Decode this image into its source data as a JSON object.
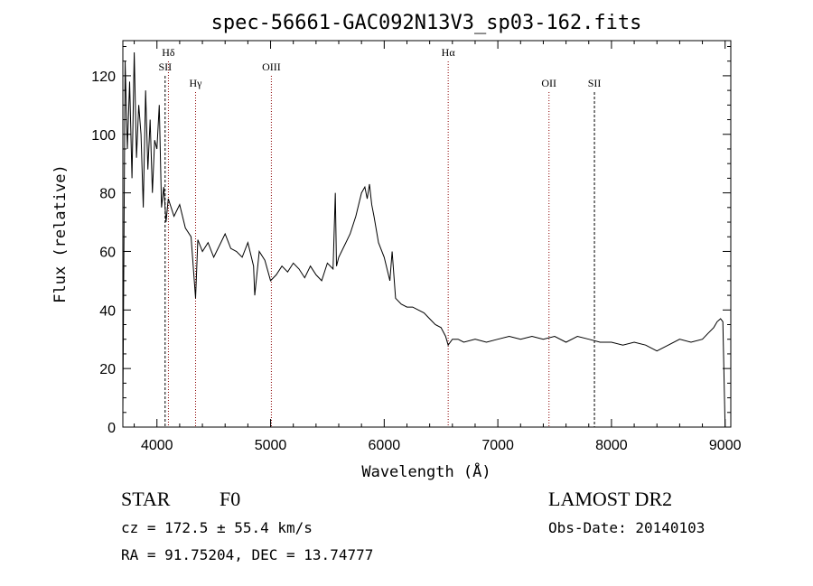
{
  "chart_data": {
    "type": "line",
    "title": "spec-56661-GAC092N13V3_sp03-162.fits",
    "xlabel": "Wavelength (Å)",
    "ylabel": "Flux (relative)",
    "xlim": [
      3700,
      9050
    ],
    "ylim": [
      0,
      132
    ],
    "xticks": [
      4000,
      5000,
      6000,
      7000,
      8000,
      9000
    ],
    "yticks": [
      0,
      20,
      40,
      60,
      80,
      100,
      120
    ],
    "grid": false,
    "series": [
      {
        "color": "#000000",
        "x": [
          3700,
          3720,
          3740,
          3760,
          3780,
          3800,
          3820,
          3840,
          3860,
          3880,
          3900,
          3920,
          3940,
          3960,
          3980,
          4000,
          4020,
          4040,
          4060,
          4080,
          4100,
          4150,
          4200,
          4250,
          4300,
          4340,
          4360,
          4400,
          4450,
          4500,
          4550,
          4600,
          4650,
          4700,
          4750,
          4800,
          4850,
          4861,
          4900,
          4950,
          5000,
          5050,
          5100,
          5150,
          5200,
          5250,
          5300,
          5350,
          5400,
          5450,
          5500,
          5550,
          5570,
          5580,
          5600,
          5650,
          5700,
          5750,
          5800,
          5830,
          5850,
          5870,
          5890,
          5910,
          5950,
          6000,
          6050,
          6070,
          6100,
          6150,
          6200,
          6250,
          6300,
          6350,
          6400,
          6450,
          6500,
          6540,
          6563,
          6600,
          6650,
          6700,
          6800,
          6900,
          7000,
          7100,
          7200,
          7300,
          7400,
          7500,
          7600,
          7700,
          7800,
          7900,
          8000,
          8100,
          8200,
          8300,
          8400,
          8500,
          8600,
          8700,
          8800,
          8850,
          8900,
          8930,
          8960,
          8980,
          9000
        ],
        "y": [
          5,
          125,
          95,
          118,
          85,
          128,
          92,
          110,
          100,
          75,
          115,
          88,
          105,
          80,
          98,
          95,
          110,
          75,
          82,
          70,
          78,
          72,
          76,
          68,
          65,
          44,
          64,
          60,
          63,
          58,
          62,
          66,
          61,
          60,
          58,
          63,
          55,
          45,
          60,
          57,
          50,
          52,
          55,
          53,
          56,
          54,
          51,
          55,
          52,
          50,
          56,
          54,
          80,
          55,
          58,
          62,
          66,
          72,
          80,
          82,
          78,
          83,
          76,
          72,
          63,
          58,
          50,
          60,
          44,
          42,
          41,
          41,
          40,
          39,
          37,
          35,
          34,
          31,
          28,
          30,
          30,
          29,
          30,
          29,
          30,
          31,
          30,
          31,
          30,
          31,
          29,
          31,
          30,
          29,
          29,
          28,
          29,
          28,
          26,
          28,
          30,
          29,
          30,
          32,
          34,
          36,
          37,
          36,
          0
        ]
      }
    ],
    "lines": [
      {
        "x": 4101,
        "label": "Hδ",
        "color": "#8b0000",
        "style": "dotted",
        "label_row": "top"
      },
      {
        "x": 4072,
        "label": "SII",
        "color": "#000000",
        "style": "dashed",
        "label_row": "middle"
      },
      {
        "x": 4340,
        "label": "Hγ",
        "color": "#8b0000",
        "style": "dotted",
        "label_row": "lower"
      },
      {
        "x": 5007,
        "label": "OIII",
        "color": "#8b0000",
        "style": "dotted",
        "label_row": "middle"
      },
      {
        "x": 6563,
        "label": "Hα",
        "color": "#8b0000",
        "style": "dotted",
        "label_row": "top"
      },
      {
        "x": 7450,
        "label": "OII",
        "color": "#8b0000",
        "style": "dotted",
        "label_row": "lower"
      },
      {
        "x": 7850,
        "label": "SII",
        "color": "#000000",
        "style": "dashed",
        "label_row": "lower"
      }
    ]
  },
  "info": {
    "class": "STAR",
    "subclass": "F0",
    "survey": "LAMOST DR2",
    "cz": "cz = 172.5 ± 55.4 km/s",
    "obs_date": "Obs-Date: 20140103",
    "coords": "RA =  91.75204, DEC =  13.74777"
  }
}
